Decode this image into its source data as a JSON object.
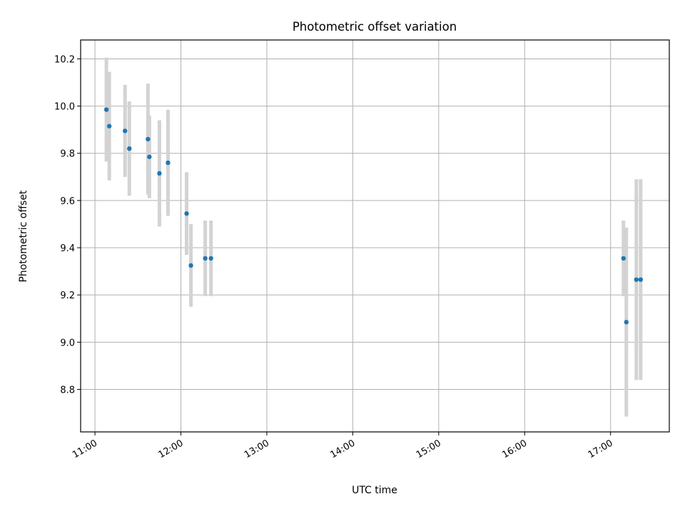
{
  "chart_data": {
    "type": "scatter",
    "title": "Photometric offset variation",
    "xlabel": "UTC time",
    "ylabel": "Photometric offset",
    "x_axis_kind": "time",
    "xlim": [
      "10:50",
      "17:41"
    ],
    "ylim": [
      8.62,
      10.28
    ],
    "x_ticks": [
      "11:00",
      "12:00",
      "13:00",
      "14:00",
      "15:00",
      "16:00",
      "17:00"
    ],
    "y_ticks": [
      8.8,
      9.0,
      9.2,
      9.4,
      9.6,
      9.8,
      10.0,
      10.2
    ],
    "y_tick_labels": [
      "8.8",
      "9.0",
      "9.2",
      "9.4",
      "9.6",
      "9.8",
      "10.0",
      "10.2"
    ],
    "grid": true,
    "colors": {
      "point": "#1f77b4",
      "errorbar": "#d3d3d3",
      "grid": "#b0b0b0"
    },
    "series": [
      {
        "points": [
          {
            "x": "11:08",
            "y": 9.985,
            "err": 0.22
          },
          {
            "x": "11:10",
            "y": 9.915,
            "err": 0.23
          },
          {
            "x": "11:21",
            "y": 9.895,
            "err": 0.195
          },
          {
            "x": "11:24",
            "y": 9.82,
            "err": 0.2
          },
          {
            "x": "11:37",
            "y": 9.86,
            "err": 0.235
          },
          {
            "x": "11:38",
            "y": 9.785,
            "err": 0.175
          },
          {
            "x": "11:45",
            "y": 9.715,
            "err": 0.225
          },
          {
            "x": "11:51",
            "y": 9.76,
            "err": 0.225
          },
          {
            "x": "12:04",
            "y": 9.545,
            "err": 0.175
          },
          {
            "x": "12:07",
            "y": 9.325,
            "err": 0.175
          },
          {
            "x": "12:17",
            "y": 9.355,
            "err": 0.16
          },
          {
            "x": "12:21",
            "y": 9.355,
            "err": 0.16
          },
          {
            "x": "17:09",
            "y": 9.355,
            "err": 0.16
          },
          {
            "x": "17:11",
            "y": 9.085,
            "err": 0.4
          },
          {
            "x": "17:18",
            "y": 9.265,
            "err": 0.425
          },
          {
            "x": "17:21",
            "y": 9.265,
            "err": 0.425
          }
        ]
      }
    ]
  }
}
